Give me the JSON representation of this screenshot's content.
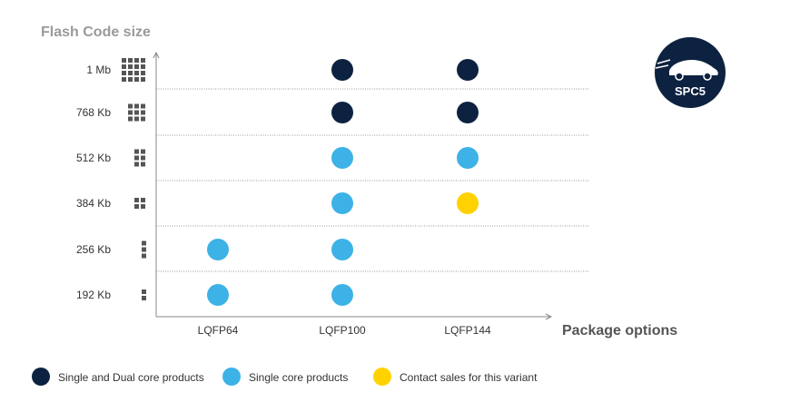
{
  "chart_data": {
    "type": "scatter",
    "ylabel": "Flash Code size",
    "xlabel": "Package options",
    "categories": [
      "LQFP64",
      "LQFP100",
      "LQFP144"
    ],
    "y_categories": [
      "1 Mb",
      "768 Kb",
      "512 Kb",
      "384 Kb",
      "256 Kb",
      "192 Kb"
    ],
    "y_icon_blocks": [
      12,
      9,
      6,
      4,
      3,
      2
    ],
    "grid": true,
    "legend_position": "bottom",
    "series": [
      {
        "name": "Single and Dual core products",
        "color": "#0d2240",
        "points": [
          {
            "x": "LQFP100",
            "y": "1 Mb"
          },
          {
            "x": "LQFP144",
            "y": "1 Mb"
          },
          {
            "x": "LQFP100",
            "y": "768 Kb"
          },
          {
            "x": "LQFP144",
            "y": "768 Kb"
          }
        ]
      },
      {
        "name": "Single core products",
        "color": "#3db2e6",
        "points": [
          {
            "x": "LQFP100",
            "y": "512 Kb"
          },
          {
            "x": "LQFP144",
            "y": "512 Kb"
          },
          {
            "x": "LQFP100",
            "y": "384 Kb"
          },
          {
            "x": "LQFP64",
            "y": "256 Kb"
          },
          {
            "x": "LQFP100",
            "y": "256 Kb"
          },
          {
            "x": "LQFP64",
            "y": "192 Kb"
          },
          {
            "x": "LQFP100",
            "y": "192 Kb"
          }
        ]
      },
      {
        "name": "Contact sales for this variant",
        "color": "#ffd200",
        "points": [
          {
            "x": "LQFP144",
            "y": "384 Kb"
          }
        ]
      }
    ]
  },
  "logo": {
    "text": "SPC5",
    "icon": "car-icon",
    "color": "#0d2240"
  },
  "colors": {
    "axis": "#888888",
    "grid": "#9a9a9a",
    "block": "#555555"
  }
}
